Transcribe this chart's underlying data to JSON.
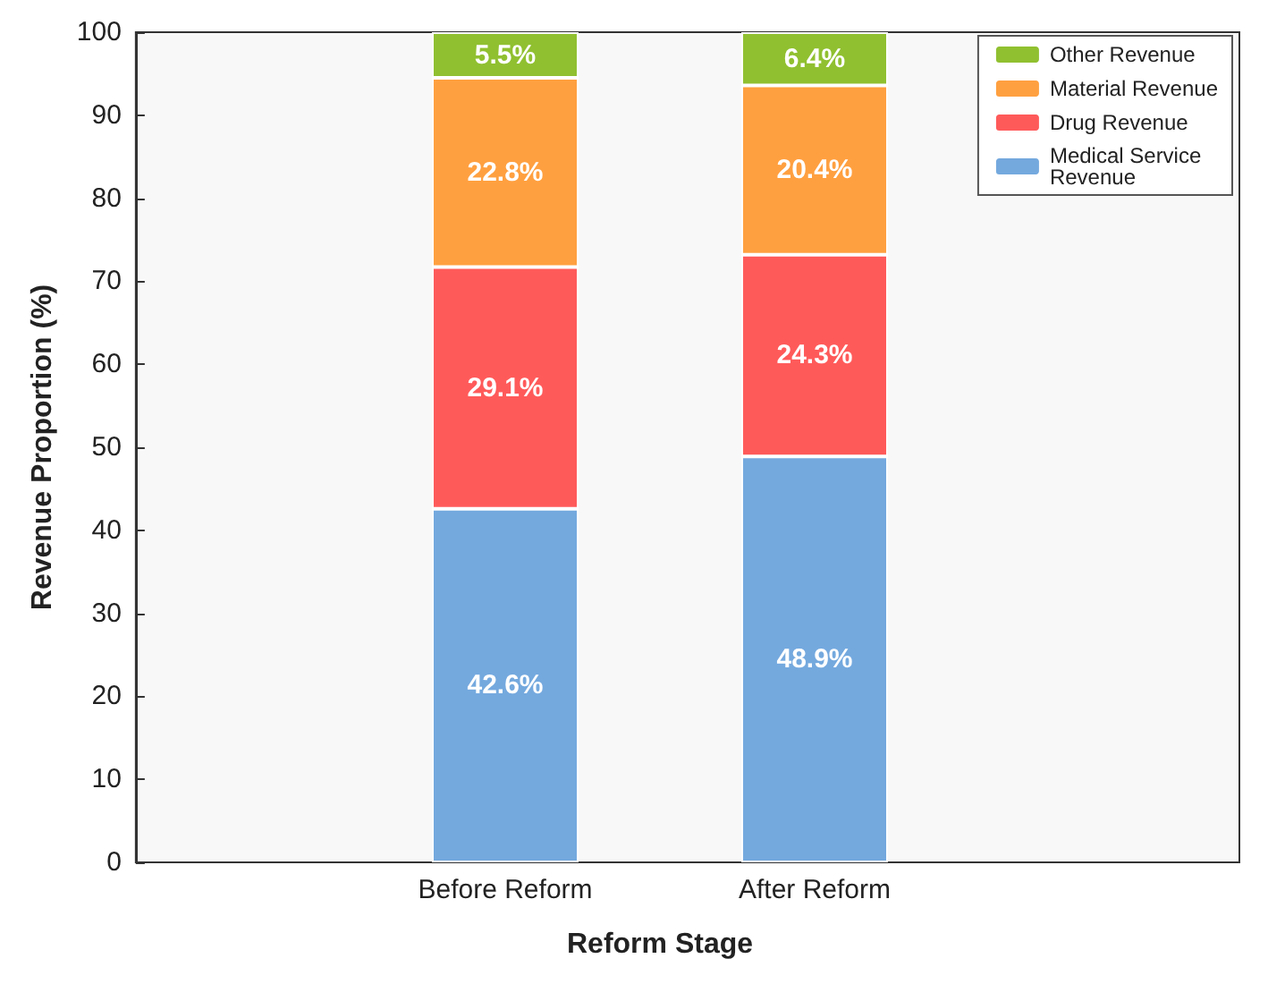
{
  "chart_data": {
    "type": "bar",
    "stacked": true,
    "xlabel": "Reform Stage",
    "ylabel": "Revenue Proportion (%)",
    "categories": [
      "Before Reform",
      "After Reform"
    ],
    "series": [
      {
        "name": "Medical Service Revenue",
        "color": "#74a9de",
        "values": [
          42.6,
          48.9
        ],
        "value_labels": [
          "42.6%",
          "48.9%"
        ]
      },
      {
        "name": "Drug Revenue",
        "color": "#ff5a5a",
        "values": [
          29.1,
          24.3
        ],
        "value_labels": [
          "29.1%",
          "24.3%"
        ]
      },
      {
        "name": "Material Revenue",
        "color": "#ffa040",
        "values": [
          22.8,
          20.4
        ],
        "value_labels": [
          "22.8%",
          "20.4%"
        ]
      },
      {
        "name": "Other Revenue",
        "color": "#90c030",
        "values": [
          5.5,
          6.4
        ],
        "value_labels": [
          "5.5%",
          "6.4%"
        ]
      }
    ],
    "ylim": [
      0,
      100
    ],
    "yticks": [
      0,
      10,
      20,
      30,
      40,
      50,
      60,
      70,
      80,
      90,
      100
    ],
    "grid": false,
    "legend": "top right"
  }
}
